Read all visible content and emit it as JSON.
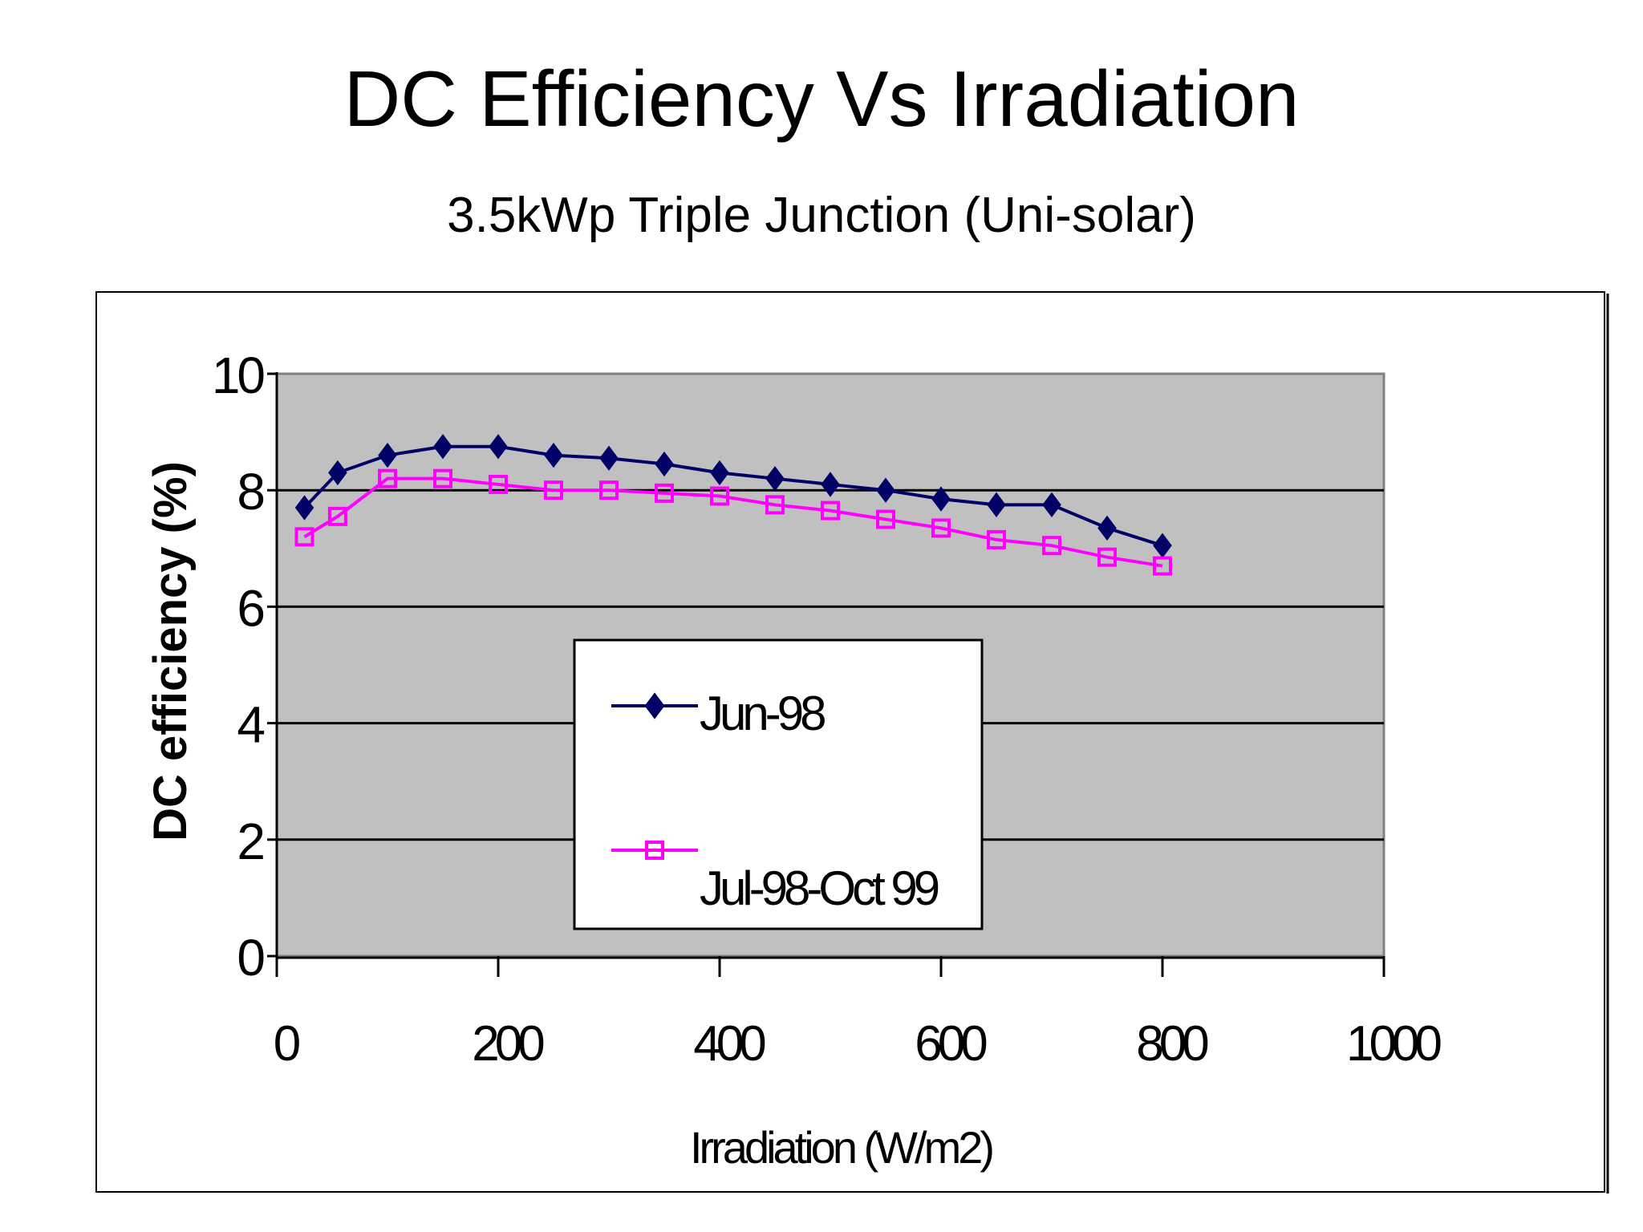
{
  "slide": {
    "title": "DC Efficiency Vs Irradiation",
    "subtitle": "3.5kWp Triple Junction (Uni-solar)"
  },
  "chart_data": {
    "type": "line",
    "xlabel": "Irradiation (W/m2)",
    "ylabel": "DC efficiency (%)",
    "xlim": [
      0,
      1000
    ],
    "ylim": [
      0,
      10
    ],
    "xticks": [
      0,
      200,
      400,
      600,
      800,
      1000
    ],
    "yticks": [
      0,
      2,
      4,
      6,
      8,
      10
    ],
    "grid": "horizontal",
    "legend": "center",
    "plot_background": "#c0c0c0",
    "series": [
      {
        "name": "Jun-98",
        "color": "#000066",
        "marker": "filled-diamond",
        "x": [
          25,
          55,
          100,
          150,
          200,
          250,
          300,
          350,
          400,
          450,
          500,
          550,
          600,
          650,
          700,
          750,
          800
        ],
        "y": [
          7.7,
          8.3,
          8.6,
          8.75,
          8.75,
          8.6,
          8.55,
          8.45,
          8.3,
          8.2,
          8.1,
          8.0,
          7.85,
          7.75,
          7.75,
          7.35,
          7.05
        ]
      },
      {
        "name": "Jul-98-Oct 99",
        "color": "#ff00ff",
        "marker": "open-square",
        "x": [
          25,
          55,
          100,
          150,
          200,
          250,
          300,
          350,
          400,
          450,
          500,
          550,
          600,
          650,
          700,
          750,
          800
        ],
        "y": [
          7.2,
          7.55,
          8.2,
          8.2,
          8.1,
          8.0,
          8.0,
          7.95,
          7.9,
          7.75,
          7.65,
          7.5,
          7.35,
          7.15,
          7.05,
          6.85,
          6.7
        ]
      }
    ]
  }
}
